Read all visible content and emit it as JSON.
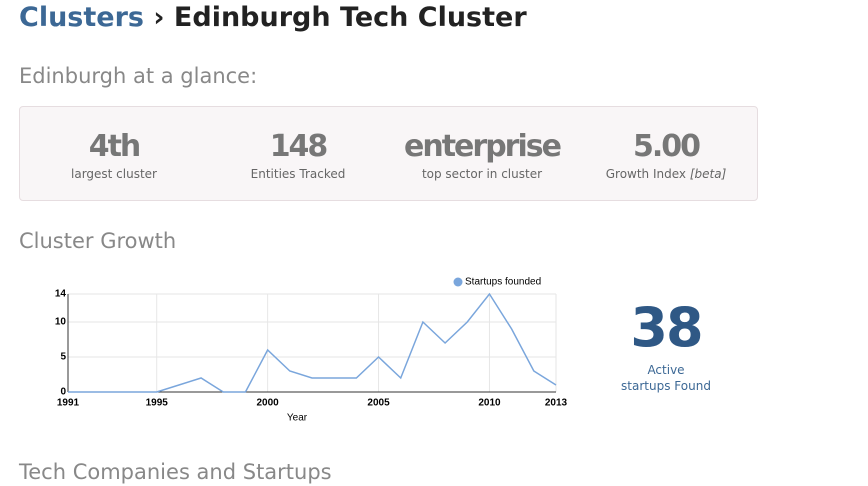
{
  "header": {
    "breadcrumb": "Clusters",
    "separator": "›",
    "title": "Edinburgh Tech Cluster"
  },
  "glance": {
    "heading": "Edinburgh at a glance:",
    "stats": [
      {
        "value": "4th",
        "label": "largest cluster"
      },
      {
        "value": "148",
        "label": "Entities Tracked"
      },
      {
        "value": "enterprise",
        "label": "top sector in cluster"
      },
      {
        "value": "5.00",
        "label": "Growth Index",
        "note": "[beta]"
      }
    ]
  },
  "growth": {
    "heading": "Cluster Growth",
    "active": {
      "value": "38",
      "label": "Active startups Found"
    }
  },
  "chart_data": {
    "type": "line",
    "x_label": "Year",
    "x": [
      1991,
      1992,
      1993,
      1994,
      1995,
      1996,
      1997,
      1998,
      1999,
      2000,
      2001,
      2002,
      2003,
      2004,
      2005,
      2006,
      2007,
      2008,
      2009,
      2010,
      2011,
      2012,
      2013
    ],
    "series": [
      {
        "name": "Startups founded",
        "color": "#7aa6dc",
        "values": [
          0,
          0,
          0,
          0,
          0,
          1,
          2,
          0,
          0,
          6,
          3,
          2,
          2,
          2,
          5,
          2,
          10,
          7,
          10,
          14,
          9,
          3,
          1
        ]
      }
    ],
    "xlim": [
      1991,
      2013
    ],
    "xticks": [
      1991,
      1995,
      2000,
      2005,
      2010,
      2013
    ],
    "ylim": [
      0,
      14
    ],
    "yticks": [
      0,
      5,
      10,
      14
    ],
    "grid": true,
    "legend": "top"
  },
  "companies": {
    "heading": "Tech Companies and Startups"
  }
}
